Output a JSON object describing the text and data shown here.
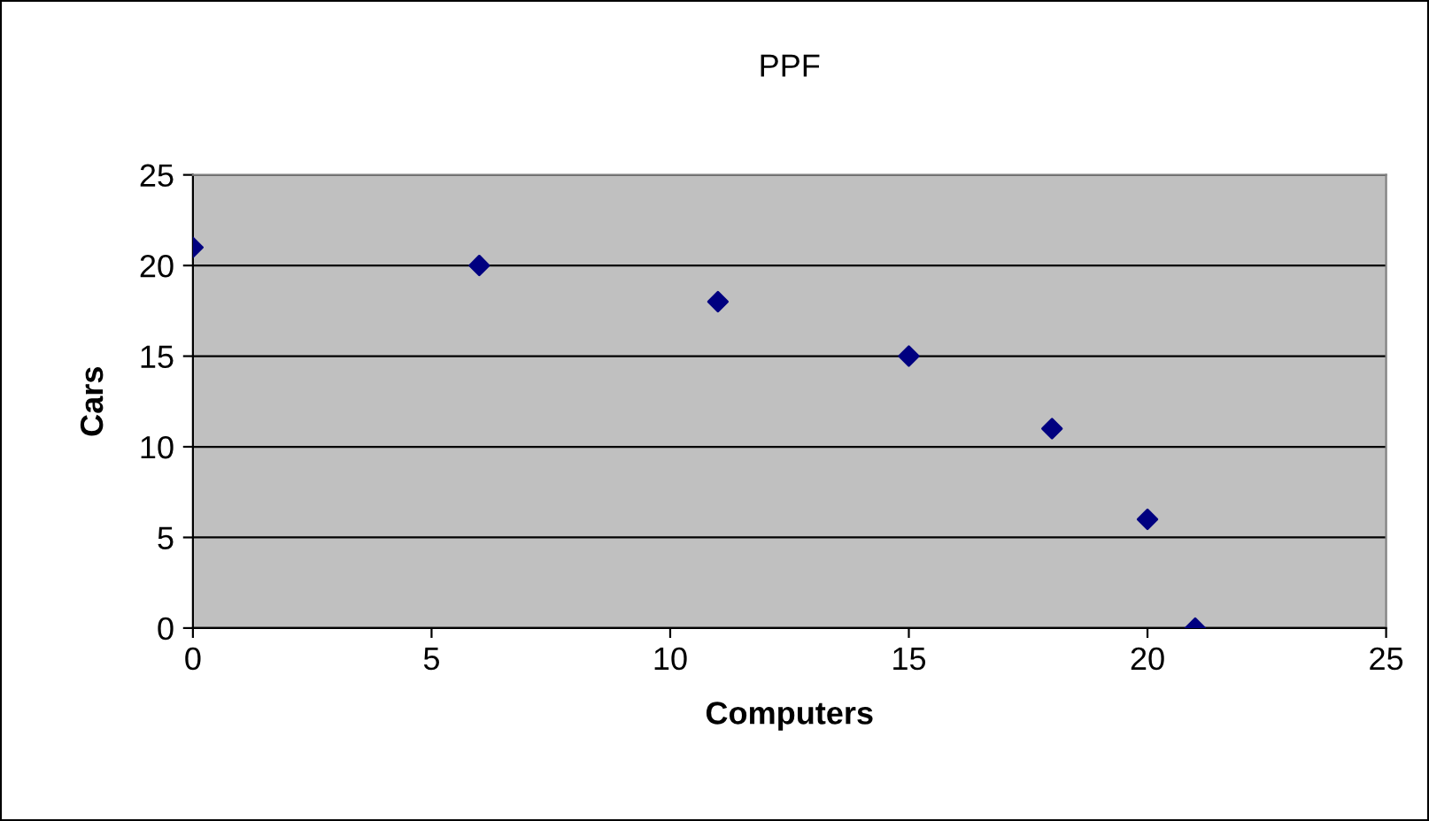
{
  "chart_data": {
    "type": "scatter",
    "title": "PPF",
    "xlabel": "Computers",
    "ylabel": "Cars",
    "x": [
      0,
      6,
      11,
      15,
      18,
      20,
      21
    ],
    "series": [
      {
        "color": "#000080",
        "values": [
          21,
          20,
          18,
          15,
          11,
          6,
          0
        ]
      }
    ],
    "marker": "diamond",
    "xlim": [
      0,
      25
    ],
    "xticks": [
      0,
      5,
      10,
      15,
      20,
      25
    ],
    "ylim": [
      0,
      25
    ],
    "yticks": [
      0,
      5,
      10,
      15,
      20,
      25
    ],
    "grid": "y",
    "legend": false
  }
}
